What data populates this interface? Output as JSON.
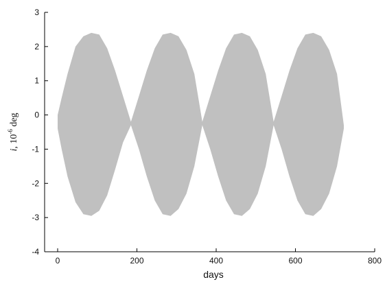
{
  "chart_data": {
    "type": "area",
    "title": "",
    "xlabel": "days",
    "ylabel": {
      "var": "i",
      "prefix": ", 10",
      "exp": "-6",
      "unit": " deg"
    },
    "xlim": [
      0,
      800
    ],
    "ylim": [
      -4,
      3
    ],
    "xticks": [
      0,
      200,
      400,
      600,
      800
    ],
    "yticks": [
      3,
      2,
      1,
      0,
      -1,
      -2,
      -3,
      -4
    ],
    "grid": false,
    "legend": "none",
    "fill_color": "#c0c0c0",
    "series": [
      {
        "x": [
          0,
          10,
          25,
          45,
          65,
          85,
          105,
          125,
          145,
          165,
          185,
          205,
          225,
          245,
          265,
          285,
          305,
          325,
          345,
          365,
          385,
          405,
          425,
          445,
          465,
          485,
          505,
          525,
          545,
          565,
          585,
          605,
          625,
          645,
          665,
          685,
          705,
          722
        ],
        "upper": [
          0.0,
          0.5,
          1.2,
          2.0,
          2.3,
          2.4,
          2.35,
          1.95,
          1.3,
          0.55,
          -0.2,
          0.55,
          1.3,
          1.95,
          2.35,
          2.4,
          2.3,
          1.9,
          1.2,
          -0.2,
          0.55,
          1.3,
          1.95,
          2.35,
          2.4,
          2.3,
          1.9,
          1.2,
          -0.2,
          0.55,
          1.3,
          1.95,
          2.35,
          2.4,
          2.3,
          1.9,
          1.2,
          -0.3
        ],
        "lower": [
          -0.4,
          -1.0,
          -1.8,
          -2.55,
          -2.9,
          -2.95,
          -2.8,
          -2.35,
          -1.6,
          -0.8,
          -0.3,
          -1.0,
          -1.8,
          -2.5,
          -2.9,
          -2.95,
          -2.75,
          -2.3,
          -1.5,
          -0.3,
          -1.0,
          -1.8,
          -2.5,
          -2.9,
          -2.95,
          -2.75,
          -2.3,
          -1.5,
          -0.3,
          -1.0,
          -1.8,
          -2.5,
          -2.9,
          -2.95,
          -2.75,
          -2.3,
          -1.5,
          -0.4
        ]
      }
    ]
  }
}
